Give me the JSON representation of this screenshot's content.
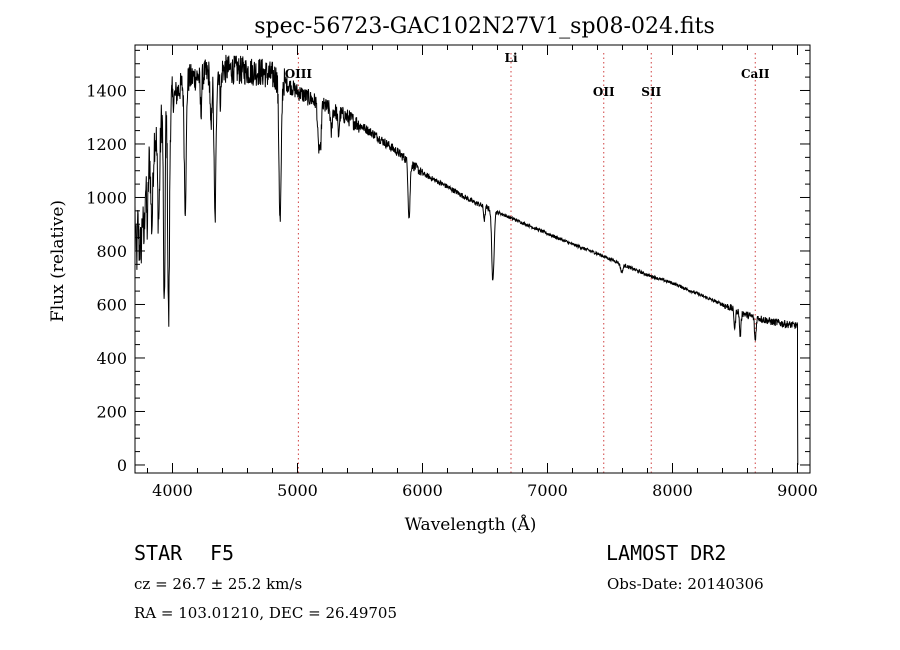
{
  "chart_data": {
    "type": "line",
    "title": "spec-56723-GAC102N27V1_sp08-024.fits",
    "xlabel": "Wavelength (Å)",
    "ylabel": "Flux (relative)",
    "xlim": [
      3700,
      9100
    ],
    "ylim": [
      -30,
      1570
    ],
    "xticks": [
      4000,
      5000,
      6000,
      7000,
      8000,
      9000
    ],
    "yticks": [
      0,
      200,
      400,
      600,
      800,
      1000,
      1200,
      1400
    ],
    "continuum": [
      [
        3700,
        1000
      ],
      [
        3900,
        1290
      ],
      [
        4100,
        1440
      ],
      [
        4400,
        1480
      ],
      [
        4700,
        1470
      ],
      [
        4860,
        1445
      ],
      [
        5000,
        1395
      ],
      [
        5200,
        1345
      ],
      [
        5400,
        1300
      ],
      [
        5600,
        1240
      ],
      [
        5800,
        1170
      ],
      [
        6000,
        1090
      ],
      [
        6200,
        1040
      ],
      [
        6400,
        985
      ],
      [
        6600,
        945
      ],
      [
        6800,
        905
      ],
      [
        7000,
        865
      ],
      [
        7200,
        825
      ],
      [
        7400,
        790
      ],
      [
        7600,
        750
      ],
      [
        7800,
        710
      ],
      [
        8000,
        680
      ],
      [
        8200,
        640
      ],
      [
        8400,
        600
      ],
      [
        8600,
        560
      ],
      [
        8800,
        535
      ],
      [
        9000,
        520
      ]
    ],
    "absorption_lines": [
      {
        "wl": 3712,
        "depth": 250,
        "width": 7
      },
      {
        "wl": 3734,
        "depth": 220,
        "width": 7
      },
      {
        "wl": 3750,
        "depth": 230,
        "width": 7
      },
      {
        "wl": 3771,
        "depth": 260,
        "width": 7
      },
      {
        "wl": 3798,
        "depth": 250,
        "width": 7
      },
      {
        "wl": 3835,
        "depth": 300,
        "width": 8
      },
      {
        "wl": 3889,
        "depth": 350,
        "width": 9
      },
      {
        "wl": 3934,
        "depth": 770,
        "width": 6
      },
      {
        "wl": 3969,
        "depth": 800,
        "width": 7
      },
      {
        "wl": 4102,
        "depth": 470,
        "width": 8
      },
      {
        "wl": 4227,
        "depth": 130,
        "width": 6
      },
      {
        "wl": 4308,
        "depth": 230,
        "width": 6
      },
      {
        "wl": 4340,
        "depth": 560,
        "width": 8
      },
      {
        "wl": 4384,
        "depth": 110,
        "width": 6
      },
      {
        "wl": 4861,
        "depth": 540,
        "width": 9
      },
      {
        "wl": 5167,
        "depth": 150,
        "width": 7
      },
      {
        "wl": 5183,
        "depth": 170,
        "width": 7
      },
      {
        "wl": 5270,
        "depth": 90,
        "width": 6
      },
      {
        "wl": 5328,
        "depth": 80,
        "width": 6
      },
      {
        "wl": 5890,
        "depth": 120,
        "width": 7
      },
      {
        "wl": 5896,
        "depth": 110,
        "width": 7
      },
      {
        "wl": 6495,
        "depth": 50,
        "width": 6
      },
      {
        "wl": 6563,
        "depth": 270,
        "width": 9
      },
      {
        "wl": 7594,
        "depth": 30,
        "width": 10
      },
      {
        "wl": 8498,
        "depth": 70,
        "width": 6
      },
      {
        "wl": 8542,
        "depth": 90,
        "width": 6
      },
      {
        "wl": 8662,
        "depth": 90,
        "width": 6
      }
    ],
    "line_markers": [
      {
        "label": "OIII",
        "wl": 5007
      },
      {
        "label": "Li",
        "wl": 6708
      },
      {
        "label": "OII",
        "wl": 7450
      },
      {
        "label": "SII",
        "wl": 7830
      },
      {
        "label": "CaII",
        "wl": 8662
      }
    ]
  },
  "info": {
    "class": "STAR",
    "subclass": "F5",
    "survey": "LAMOST DR2",
    "redshift": "cz = 26.7 ± 25.2 km/s",
    "obs_date": "Obs-Date: 20140306",
    "coords": "RA = 103.01210, DEC =  26.49705"
  },
  "colors": {
    "line": "#000000",
    "marker": "#d04040",
    "background": "#ffffff"
  }
}
